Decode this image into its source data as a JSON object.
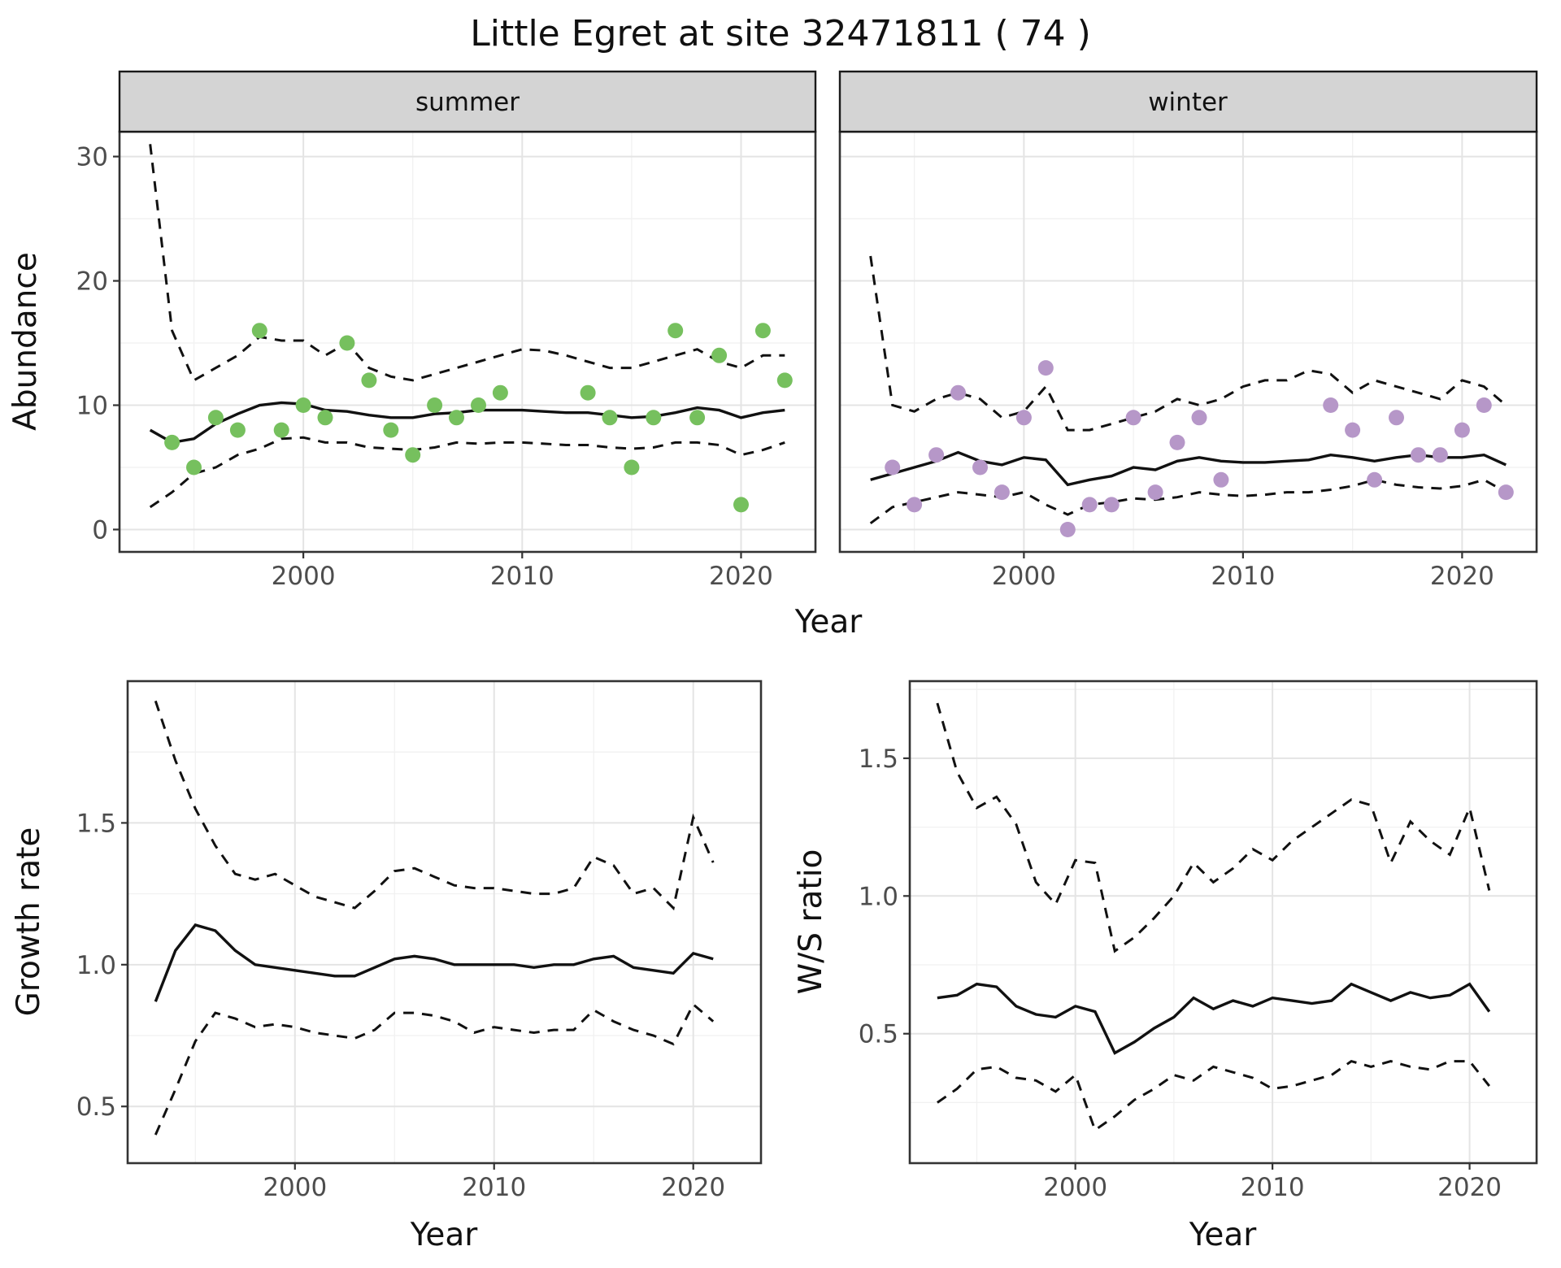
{
  "title": "Little Egret at site 32471811 ( 74 )",
  "colors": {
    "summer_points": "#76c05e",
    "winter_points": "#b697c8",
    "line": "#111111",
    "strip_background": "#d4d4d4"
  },
  "chart_data": [
    {
      "id": "abundance_summer",
      "type": "line+scatter",
      "facet": "summer",
      "ylabel": "Abundance",
      "xlabel": "Year",
      "xlim": [
        1991.6,
        2023.4
      ],
      "ylim": [
        -1.8,
        32
      ],
      "xticks": [
        2000,
        2010,
        2020
      ],
      "xtick_labels": [
        "2000",
        "2010",
        "2020"
      ],
      "yticks": [
        0,
        10,
        20,
        30
      ],
      "ytick_labels": [
        "0",
        "10",
        "20",
        "30"
      ],
      "grid": true,
      "point_color": "#76c05e",
      "points": {
        "x": [
          1994,
          1995,
          1996,
          1997,
          1998,
          1999,
          2000,
          2001,
          2002,
          2003,
          2004,
          2005,
          2006,
          2007,
          2008,
          2009,
          2013,
          2014,
          2015,
          2016,
          2017,
          2018,
          2019,
          2020,
          2021,
          2022
        ],
        "y": [
          7,
          5,
          9,
          8,
          16,
          8,
          10,
          9,
          15,
          12,
          8,
          6,
          10,
          9,
          10,
          11,
          11,
          9,
          5,
          9,
          16,
          9,
          14,
          2,
          16,
          12
        ]
      },
      "lines": {
        "x": [
          1993,
          1994,
          1995,
          1996,
          1997,
          1998,
          1999,
          2000,
          2001,
          2002,
          2003,
          2004,
          2005,
          2006,
          2007,
          2008,
          2009,
          2010,
          2011,
          2012,
          2013,
          2014,
          2015,
          2016,
          2017,
          2018,
          2019,
          2020,
          2021,
          2022
        ],
        "fit": [
          8.0,
          7.0,
          7.3,
          8.5,
          9.3,
          10.0,
          10.2,
          10.1,
          9.6,
          9.5,
          9.2,
          9.0,
          9.0,
          9.3,
          9.4,
          9.6,
          9.6,
          9.6,
          9.5,
          9.4,
          9.4,
          9.2,
          9.0,
          9.1,
          9.4,
          9.8,
          9.6,
          9.0,
          9.4,
          9.6
        ],
        "upper": [
          31,
          16,
          12,
          13,
          14,
          15.5,
          15.2,
          15.2,
          14,
          15,
          13,
          12.3,
          12,
          12.5,
          13,
          13.5,
          14,
          14.5,
          14.4,
          14,
          13.5,
          13,
          13,
          13.5,
          14,
          14.5,
          13.5,
          13,
          14,
          14
        ],
        "lower": [
          1.8,
          3.0,
          4.5,
          5.0,
          6.0,
          6.5,
          7.3,
          7.4,
          7.0,
          7.0,
          6.6,
          6.5,
          6.4,
          6.6,
          7.0,
          6.9,
          7.0,
          7.0,
          6.9,
          6.8,
          6.8,
          6.6,
          6.5,
          6.6,
          7.0,
          7.0,
          6.8,
          6.0,
          6.4,
          7.0
        ]
      }
    },
    {
      "id": "abundance_winter",
      "type": "line+scatter",
      "facet": "winter",
      "ylabel": "Abundance",
      "xlabel": "Year",
      "xlim": [
        1991.6,
        2023.4
      ],
      "ylim": [
        -1.8,
        32
      ],
      "xticks": [
        2000,
        2010,
        2020
      ],
      "xtick_labels": [
        "2000",
        "2010",
        "2020"
      ],
      "yticks": [
        0,
        10,
        20,
        30
      ],
      "ytick_labels": [
        "0",
        "10",
        "20",
        "30"
      ],
      "grid": true,
      "point_color": "#b697c8",
      "points": {
        "x": [
          1994,
          1995,
          1996,
          1997,
          1998,
          1999,
          2000,
          2001,
          2002,
          2003,
          2004,
          2005,
          2006,
          2007,
          2008,
          2009,
          2014,
          2015,
          2016,
          2017,
          2018,
          2019,
          2020,
          2021,
          2022
        ],
        "y": [
          5,
          2,
          6,
          11,
          5,
          3,
          9,
          13,
          0,
          2,
          2,
          9,
          3,
          7,
          9,
          4,
          10,
          8,
          4,
          9,
          6,
          6,
          8,
          10,
          3
        ]
      },
      "lines": {
        "x": [
          1993,
          1994,
          1995,
          1996,
          1997,
          1998,
          1999,
          2000,
          2001,
          2002,
          2003,
          2004,
          2005,
          2006,
          2007,
          2008,
          2009,
          2010,
          2011,
          2012,
          2013,
          2014,
          2015,
          2016,
          2017,
          2018,
          2019,
          2020,
          2021,
          2022
        ],
        "fit": [
          4.0,
          4.5,
          5.0,
          5.5,
          6.2,
          5.5,
          5.2,
          5.8,
          5.6,
          3.6,
          4.0,
          4.3,
          5.0,
          4.8,
          5.5,
          5.8,
          5.5,
          5.4,
          5.4,
          5.5,
          5.6,
          6.0,
          5.8,
          5.5,
          5.8,
          6.0,
          5.8,
          5.8,
          6.0,
          5.2
        ],
        "upper": [
          22,
          10,
          9.5,
          10.5,
          11,
          10.5,
          9,
          9.5,
          11.5,
          8,
          8,
          8.5,
          9,
          9.5,
          10.5,
          10,
          10.5,
          11.5,
          12,
          12,
          12.8,
          12.5,
          11,
          12,
          11.5,
          11,
          10.5,
          12,
          11.5,
          10
        ],
        "lower": [
          0.5,
          1.8,
          2.2,
          2.6,
          3.0,
          2.8,
          2.6,
          3.0,
          2.0,
          1.2,
          2.0,
          2.2,
          2.5,
          2.4,
          2.6,
          3.0,
          2.8,
          2.7,
          2.8,
          3.0,
          3.0,
          3.2,
          3.5,
          4.0,
          3.6,
          3.4,
          3.3,
          3.5,
          4.0,
          3.0
        ]
      }
    },
    {
      "id": "growth_rate",
      "type": "line",
      "facet": null,
      "ylabel": "Growth rate",
      "xlabel": "Year",
      "xlim": [
        1991.6,
        2023.4
      ],
      "ylim": [
        0.3,
        2.0
      ],
      "xticks": [
        2000,
        2010,
        2020
      ],
      "xtick_labels": [
        "2000",
        "2010",
        "2020"
      ],
      "yticks": [
        0.5,
        1.0,
        1.5
      ],
      "ytick_labels": [
        "0.5",
        "1.0",
        "1.5"
      ],
      "grid": true,
      "lines": {
        "x": [
          1993,
          1994,
          1995,
          1996,
          1997,
          1998,
          1999,
          2000,
          2001,
          2002,
          2003,
          2004,
          2005,
          2006,
          2007,
          2008,
          2009,
          2010,
          2011,
          2012,
          2013,
          2014,
          2015,
          2016,
          2017,
          2018,
          2019,
          2020,
          2021
        ],
        "fit": [
          0.87,
          1.05,
          1.14,
          1.12,
          1.05,
          1.0,
          0.99,
          0.98,
          0.97,
          0.96,
          0.96,
          0.99,
          1.02,
          1.03,
          1.02,
          1.0,
          1.0,
          1.0,
          1.0,
          0.99,
          1.0,
          1.0,
          1.02,
          1.03,
          0.99,
          0.98,
          0.97,
          1.04,
          1.02
        ],
        "upper": [
          1.93,
          1.72,
          1.55,
          1.42,
          1.32,
          1.3,
          1.32,
          1.28,
          1.24,
          1.22,
          1.2,
          1.26,
          1.33,
          1.34,
          1.31,
          1.28,
          1.27,
          1.27,
          1.26,
          1.25,
          1.25,
          1.27,
          1.38,
          1.35,
          1.25,
          1.27,
          1.2,
          1.52,
          1.36
        ],
        "lower": [
          0.4,
          0.56,
          0.73,
          0.83,
          0.81,
          0.78,
          0.79,
          0.78,
          0.76,
          0.75,
          0.74,
          0.77,
          0.83,
          0.83,
          0.82,
          0.8,
          0.76,
          0.78,
          0.77,
          0.76,
          0.77,
          0.77,
          0.84,
          0.8,
          0.77,
          0.75,
          0.72,
          0.86,
          0.8
        ]
      }
    },
    {
      "id": "ws_ratio",
      "type": "line",
      "facet": null,
      "ylabel": "W/S ratio",
      "xlabel": "Year",
      "xlim": [
        1991.6,
        2023.4
      ],
      "ylim": [
        0.03,
        1.78
      ],
      "xticks": [
        2000,
        2010,
        2020
      ],
      "xtick_labels": [
        "2000",
        "2010",
        "2020"
      ],
      "yticks": [
        0.5,
        1.0,
        1.5
      ],
      "ytick_labels": [
        "0.5",
        "1.0",
        "1.5"
      ],
      "grid": true,
      "lines": {
        "x": [
          1993,
          1994,
          1995,
          1996,
          1997,
          1998,
          1999,
          2000,
          2001,
          2002,
          2003,
          2004,
          2005,
          2006,
          2007,
          2008,
          2009,
          2010,
          2011,
          2012,
          2013,
          2014,
          2015,
          2016,
          2017,
          2018,
          2019,
          2020,
          2021
        ],
        "fit": [
          0.63,
          0.64,
          0.68,
          0.67,
          0.6,
          0.57,
          0.56,
          0.6,
          0.58,
          0.43,
          0.47,
          0.52,
          0.56,
          0.63,
          0.59,
          0.62,
          0.6,
          0.63,
          0.62,
          0.61,
          0.62,
          0.68,
          0.65,
          0.62,
          0.65,
          0.63,
          0.64,
          0.68,
          0.58
        ],
        "upper": [
          1.7,
          1.45,
          1.32,
          1.36,
          1.26,
          1.05,
          0.97,
          1.13,
          1.12,
          0.8,
          0.85,
          0.92,
          1.0,
          1.12,
          1.05,
          1.1,
          1.17,
          1.13,
          1.2,
          1.25,
          1.3,
          1.35,
          1.33,
          1.12,
          1.27,
          1.2,
          1.15,
          1.32,
          1.02
        ],
        "lower": [
          0.25,
          0.3,
          0.37,
          0.38,
          0.34,
          0.33,
          0.29,
          0.35,
          0.15,
          0.2,
          0.26,
          0.3,
          0.35,
          0.33,
          0.38,
          0.36,
          0.34,
          0.3,
          0.31,
          0.33,
          0.35,
          0.4,
          0.38,
          0.4,
          0.38,
          0.37,
          0.4,
          0.4,
          0.31
        ]
      }
    }
  ]
}
